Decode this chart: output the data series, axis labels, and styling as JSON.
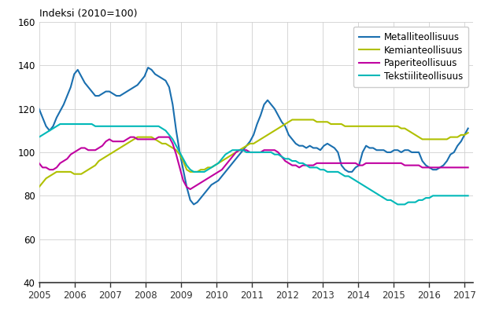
{
  "title": "Indeksi (2010=100)",
  "ylim": [
    40,
    160
  ],
  "yticks": [
    40,
    60,
    80,
    100,
    120,
    140,
    160
  ],
  "xlim": [
    2005.0,
    2017.25
  ],
  "xticks": [
    2005,
    2006,
    2007,
    2008,
    2009,
    2010,
    2011,
    2012,
    2013,
    2014,
    2015,
    2016,
    2017
  ],
  "legend": [
    "Metalliteollisuus",
    "Kemianteollisuus",
    "Paperiteollisuus",
    "Tekstiiliteollisuus"
  ],
  "colors": {
    "Metalliteollisuus": "#1a6faf",
    "Kemianteollisuus": "#b0c000",
    "Paperiteollisuus": "#c000a0",
    "Tekstiiliteollisuus": "#00b8b8"
  },
  "metalliteollisuus_y": [
    120,
    116,
    112,
    110,
    112,
    116,
    119,
    122,
    126,
    130,
    136,
    138,
    135,
    132,
    130,
    128,
    126,
    126,
    127,
    128,
    128,
    127,
    126,
    126,
    127,
    128,
    129,
    130,
    131,
    133,
    135,
    139,
    138,
    136,
    135,
    134,
    133,
    130,
    122,
    110,
    100,
    92,
    84,
    78,
    76,
    77,
    79,
    81,
    83,
    85,
    86,
    87,
    89,
    91,
    93,
    95,
    97,
    99,
    101,
    103,
    105,
    108,
    113,
    117,
    122,
    124,
    122,
    120,
    117,
    114,
    112,
    108,
    106,
    104,
    103,
    103,
    102,
    103,
    102,
    102,
    101,
    103,
    104,
    103,
    102,
    100,
    94,
    92,
    91,
    91,
    93,
    94,
    100,
    103,
    102,
    102,
    101,
    101,
    101,
    100,
    100,
    101,
    101,
    100,
    101,
    101,
    100,
    100,
    100,
    96,
    94,
    93,
    92,
    92,
    93,
    94,
    96,
    99,
    100,
    103,
    105,
    108,
    111
  ],
  "kemianteollisuus_y": [
    84,
    86,
    88,
    89,
    90,
    91,
    91,
    91,
    91,
    91,
    90,
    90,
    90,
    91,
    92,
    93,
    94,
    96,
    97,
    98,
    99,
    100,
    101,
    102,
    103,
    104,
    105,
    106,
    107,
    107,
    107,
    107,
    107,
    106,
    105,
    104,
    104,
    103,
    102,
    101,
    99,
    96,
    92,
    91,
    91,
    91,
    92,
    92,
    93,
    93,
    94,
    95,
    96,
    97,
    98,
    99,
    100,
    101,
    102,
    103,
    104,
    104,
    105,
    106,
    107,
    108,
    109,
    110,
    111,
    112,
    113,
    114,
    115,
    115,
    115,
    115,
    115,
    115,
    115,
    114,
    114,
    114,
    114,
    113,
    113,
    113,
    113,
    112,
    112,
    112,
    112,
    112,
    112,
    112,
    112,
    112,
    112,
    112,
    112,
    112,
    112,
    112,
    112,
    111,
    111,
    110,
    109,
    108,
    107,
    106,
    106,
    106,
    106,
    106,
    106,
    106,
    106,
    107,
    107,
    107,
    108,
    108,
    109
  ],
  "paperiteollisuus_y": [
    95,
    93,
    93,
    92,
    92,
    93,
    95,
    96,
    97,
    99,
    100,
    101,
    102,
    102,
    101,
    101,
    101,
    102,
    103,
    105,
    106,
    105,
    105,
    105,
    105,
    106,
    107,
    107,
    106,
    106,
    106,
    106,
    106,
    106,
    107,
    107,
    107,
    107,
    104,
    99,
    93,
    87,
    84,
    83,
    84,
    85,
    86,
    87,
    88,
    89,
    90,
    91,
    92,
    94,
    96,
    98,
    100,
    101,
    101,
    101,
    100,
    100,
    100,
    100,
    101,
    101,
    101,
    101,
    100,
    98,
    96,
    95,
    94,
    94,
    93,
    94,
    94,
    94,
    94,
    95,
    95,
    95,
    95,
    95,
    95,
    95,
    95,
    95,
    95,
    95,
    95,
    94,
    94,
    95,
    95,
    95,
    95,
    95,
    95,
    95,
    95,
    95,
    95,
    95,
    94,
    94,
    94,
    94,
    94,
    93,
    93,
    93,
    93,
    93,
    93,
    93,
    93,
    93,
    93,
    93,
    93,
    93,
    93
  ],
  "tekstiiliteollisuus_y": [
    107,
    108,
    109,
    110,
    111,
    112,
    113,
    113,
    113,
    113,
    113,
    113,
    113,
    113,
    113,
    113,
    112,
    112,
    112,
    112,
    112,
    112,
    112,
    112,
    112,
    112,
    112,
    112,
    112,
    112,
    112,
    112,
    112,
    112,
    112,
    111,
    110,
    108,
    106,
    103,
    100,
    97,
    94,
    92,
    91,
    91,
    91,
    91,
    92,
    93,
    94,
    95,
    97,
    99,
    100,
    101,
    101,
    101,
    101,
    100,
    100,
    100,
    100,
    100,
    100,
    100,
    100,
    99,
    99,
    98,
    97,
    97,
    96,
    96,
    95,
    95,
    94,
    93,
    93,
    93,
    92,
    92,
    91,
    91,
    91,
    91,
    90,
    89,
    89,
    88,
    87,
    86,
    85,
    84,
    83,
    82,
    81,
    80,
    79,
    78,
    78,
    77,
    76,
    76,
    76,
    77,
    77,
    77,
    78,
    78,
    79,
    79,
    80,
    80,
    80,
    80,
    80,
    80,
    80,
    80,
    80,
    80,
    80
  ]
}
